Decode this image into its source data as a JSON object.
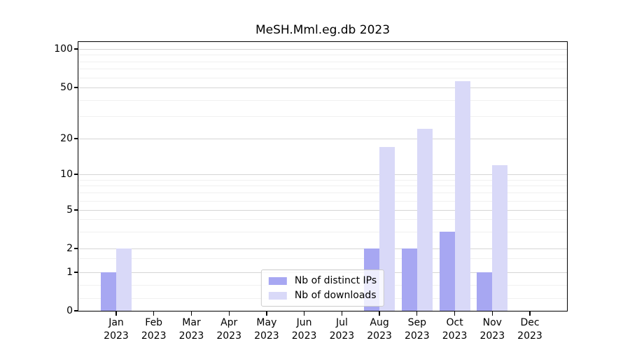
{
  "title": "MeSH.Mml.eg.db 2023",
  "colors": {
    "distinct_ips": "#a7a7f2",
    "downloads": "#d9d9f8",
    "grid_major": "#d5d5d5",
    "grid_minor": "#f0f0f0",
    "axis": "#000000",
    "legend_border": "#cccccc"
  },
  "y_axis": {
    "tick_labels": [
      "100",
      "50",
      "20",
      "10",
      "5",
      "2",
      "1",
      "0"
    ],
    "tick_values": [
      100,
      50,
      20,
      10,
      5,
      2,
      1,
      0
    ]
  },
  "x_axis": {
    "months": [
      "Jan",
      "Feb",
      "Mar",
      "Apr",
      "May",
      "Jun",
      "Jul",
      "Aug",
      "Sep",
      "Oct",
      "Nov",
      "Dec"
    ],
    "year": "2023"
  },
  "legend": {
    "items": [
      {
        "label": "Nb of distinct IPs",
        "color_key": "distinct_ips"
      },
      {
        "label": "Nb of downloads",
        "color_key": "downloads"
      }
    ]
  },
  "chart_data": {
    "type": "bar",
    "title": "MeSH.Mml.eg.db 2023",
    "categories": [
      "Jan 2023",
      "Feb 2023",
      "Mar 2023",
      "Apr 2023",
      "May 2023",
      "Jun 2023",
      "Jul 2023",
      "Aug 2023",
      "Sep 2023",
      "Oct 2023",
      "Nov 2023",
      "Dec 2023"
    ],
    "series": [
      {
        "name": "Nb of distinct IPs",
        "color": "#a7a7f2",
        "values": [
          1,
          0,
          0,
          0,
          0,
          0,
          0,
          2,
          2,
          3,
          1,
          0
        ]
      },
      {
        "name": "Nb of downloads",
        "color": "#d9d9f8",
        "values": [
          2,
          0,
          0,
          0,
          0,
          0,
          0,
          17,
          24,
          56,
          12,
          0
        ]
      }
    ],
    "xlabel": "",
    "ylabel": "",
    "yscale": "log-like (log above 1, linear 0-1)",
    "y_ticks": [
      0,
      1,
      2,
      5,
      10,
      20,
      50,
      100
    ],
    "ylim": [
      0,
      110
    ],
    "grid": true,
    "legend_position": "lower center"
  }
}
